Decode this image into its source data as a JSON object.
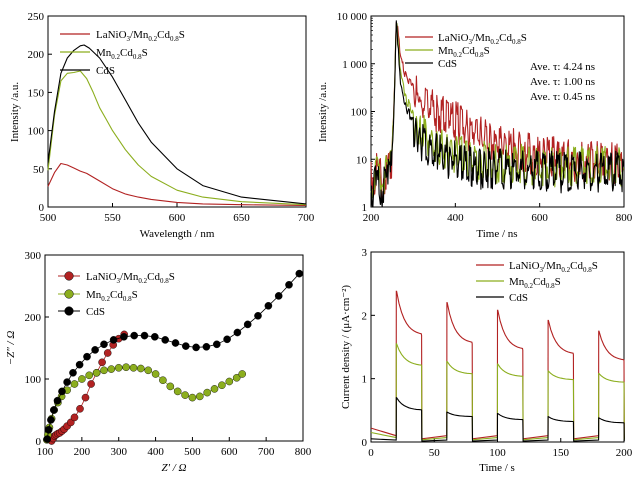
{
  "colors": {
    "red": "#b22222",
    "green": "#8cae1e",
    "black": "#000000"
  },
  "chart_data": [
    {
      "type": "line",
      "xlabel": "Wavelength / nm",
      "ylabel": "Intensity /a.u.",
      "xlim": [
        500,
        700
      ],
      "ylim": [
        0,
        250
      ],
      "xticks": [
        "500",
        "550",
        "600",
        "650",
        "700"
      ],
      "yticks": [
        "0",
        "50",
        "100",
        "150",
        "200",
        "250"
      ],
      "legend": "top-left",
      "series": [
        {
          "name": "LaNiO3/Mn0.2Cd0.8S",
          "color": "red",
          "x": [
            500,
            505,
            510,
            515,
            520,
            525,
            530,
            540,
            550,
            560,
            570,
            580,
            600,
            620,
            650,
            700
          ],
          "y": [
            27,
            45,
            57,
            55,
            51,
            47,
            44,
            34,
            24,
            17,
            13,
            10,
            6,
            4,
            3,
            2
          ]
        },
        {
          "name": "Mn0.2Cd0.8S",
          "color": "green",
          "x": [
            500,
            505,
            510,
            515,
            520,
            525,
            530,
            535,
            540,
            545,
            550,
            560,
            570,
            580,
            600,
            620,
            650,
            700
          ],
          "y": [
            48,
            120,
            165,
            175,
            176,
            178,
            168,
            150,
            130,
            115,
            100,
            75,
            55,
            40,
            22,
            13,
            7,
            3
          ]
        },
        {
          "name": "CdS",
          "color": "black",
          "x": [
            500,
            505,
            510,
            515,
            520,
            525,
            528,
            532,
            540,
            550,
            560,
            570,
            580,
            600,
            620,
            650,
            700
          ],
          "y": [
            58,
            125,
            175,
            195,
            205,
            211,
            212,
            208,
            195,
            170,
            140,
            110,
            85,
            50,
            28,
            13,
            4
          ]
        }
      ]
    },
    {
      "type": "line",
      "xlabel": "Time / ns",
      "ylabel": "Intensity /a.u.",
      "scale": "log",
      "xlim": [
        200,
        800
      ],
      "ylim": [
        1,
        10000
      ],
      "xticks": [
        "200",
        "400",
        "600",
        "800"
      ],
      "yticks": [
        "1",
        "10",
        "100",
        "1 000",
        "10 000"
      ],
      "legend": "top-right",
      "annotations": [
        {
          "text": "Ave. τ: 4.24 ns",
          "color": "red"
        },
        {
          "text": "Ave. τ: 1.00 ns",
          "color": "green"
        },
        {
          "text": "Ave. τ: 0.45 ns",
          "color": "black"
        }
      ],
      "series": [
        {
          "name": "LaNiO3/Mn0.2Cd0.8S",
          "color": "red",
          "x": [
            200,
            240,
            250,
            255,
            260,
            265,
            270,
            280,
            300,
            320,
            350,
            400,
            450,
            500,
            550,
            600,
            650,
            700,
            750,
            800
          ],
          "y": [
            8,
            8,
            20,
            200,
            9000,
            5000,
            1500,
            700,
            400,
            250,
            170,
            100,
            55,
            35,
            25,
            20,
            17,
            15,
            14,
            13
          ]
        },
        {
          "name": "Mn0.2Cd0.8S",
          "color": "green",
          "x": [
            200,
            240,
            250,
            255,
            260,
            265,
            270,
            280,
            300,
            320,
            350,
            400,
            450,
            500,
            600,
            700,
            800
          ],
          "y": [
            7,
            7,
            20,
            200,
            9000,
            3000,
            700,
            250,
            100,
            55,
            35,
            20,
            15,
            13,
            12,
            12,
            12
          ]
        },
        {
          "name": "CdS",
          "color": "black",
          "x": [
            200,
            240,
            250,
            255,
            260,
            265,
            270,
            280,
            300,
            320,
            350,
            400,
            450,
            500,
            600,
            700,
            800
          ],
          "y": [
            5,
            5,
            15,
            150,
            9500,
            2000,
            400,
            150,
            70,
            40,
            25,
            15,
            11,
            10,
            9,
            9,
            9
          ]
        }
      ]
    },
    {
      "type": "scatter",
      "xlabel": "Z′ / Ω",
      "ylabel": "−Z″ / Ω",
      "xlim": [
        100,
        800
      ],
      "ylim": [
        0,
        300
      ],
      "xticks": [
        "100",
        "200",
        "300",
        "400",
        "500",
        "600",
        "700",
        "800"
      ],
      "yticks": [
        "0",
        "100",
        "200",
        "300"
      ],
      "legend": "top-left",
      "series": [
        {
          "name": "LaNiO3/Mn0.2Cd0.8S",
          "color": "red",
          "x": [
            118,
            122,
            126,
            130,
            135,
            140,
            146,
            152,
            160,
            170,
            180,
            195,
            210,
            225,
            240,
            255,
            270,
            285,
            300,
            315
          ],
          "y": [
            0,
            4,
            8,
            10,
            12,
            13,
            16,
            19,
            24,
            30,
            38,
            52,
            70,
            92,
            110,
            127,
            142,
            155,
            165,
            172
          ]
        },
        {
          "name": "Mn0.2Cd0.8S",
          "color": "green",
          "x": [
            105,
            108,
            112,
            118,
            125,
            135,
            145,
            160,
            180,
            200,
            220,
            240,
            260,
            280,
            300,
            320,
            340,
            360,
            380,
            400,
            420,
            440,
            460,
            480,
            500,
            520,
            540,
            560,
            580,
            600,
            620,
            635
          ],
          "y": [
            2,
            10,
            22,
            36,
            50,
            62,
            72,
            82,
            92,
            100,
            106,
            110,
            114,
            116,
            118,
            119,
            118,
            117,
            114,
            108,
            98,
            88,
            80,
            74,
            70,
            72,
            78,
            84,
            90,
            96,
            102,
            108
          ]
        },
        {
          "name": "CdS",
          "color": "black",
          "x": [
            106,
            110,
            116,
            124,
            134,
            146,
            160,
            176,
            194,
            214,
            236,
            260,
            286,
            314,
            342,
            370,
            398,
            426,
            454,
            482,
            510,
            538,
            566,
            594,
            622,
            650,
            678,
            706,
            734,
            762,
            790
          ],
          "y": [
            3,
            18,
            34,
            50,
            65,
            80,
            95,
            110,
            123,
            136,
            147,
            156,
            163,
            168,
            170,
            170,
            168,
            163,
            158,
            153,
            151,
            152,
            156,
            164,
            175,
            188,
            202,
            218,
            234,
            252,
            270
          ]
        }
      ]
    },
    {
      "type": "line",
      "xlabel": "Time / s",
      "ylabel": "Current density / (μA·cm⁻²)",
      "xlim": [
        0,
        200
      ],
      "ylim": [
        0,
        3
      ],
      "xticks": [
        "0",
        "50",
        "100",
        "150",
        "200"
      ],
      "yticks": [
        "0",
        "1",
        "2",
        "3"
      ],
      "legend": "top-right",
      "light_on": [
        [
          20,
          40
        ],
        [
          60,
          80
        ],
        [
          100,
          120
        ],
        [
          140,
          160
        ],
        [
          180,
          200
        ]
      ],
      "series": [
        {
          "name": "LaNiO3/Mn0.2Cd0.8S",
          "color": "red",
          "dark": 0.1,
          "start": 0.22,
          "on_peak": [
            2.38,
            2.2,
            2.08,
            1.92,
            1.75
          ],
          "on_end": [
            1.68,
            1.55,
            1.45,
            1.38,
            1.28
          ]
        },
        {
          "name": "Mn0.2Cd0.8S",
          "color": "green",
          "dark": 0.07,
          "start": 0.15,
          "on_peak": [
            1.55,
            1.27,
            1.23,
            1.12,
            1.08
          ],
          "on_end": [
            1.2,
            1.07,
            1.03,
            0.98,
            0.94
          ]
        },
        {
          "name": "CdS",
          "color": "black",
          "dark": 0.03,
          "start": 0.05,
          "on_peak": [
            0.7,
            0.47,
            0.45,
            0.4,
            0.38
          ],
          "on_end": [
            0.5,
            0.4,
            0.35,
            0.32,
            0.3
          ]
        }
      ]
    }
  ]
}
